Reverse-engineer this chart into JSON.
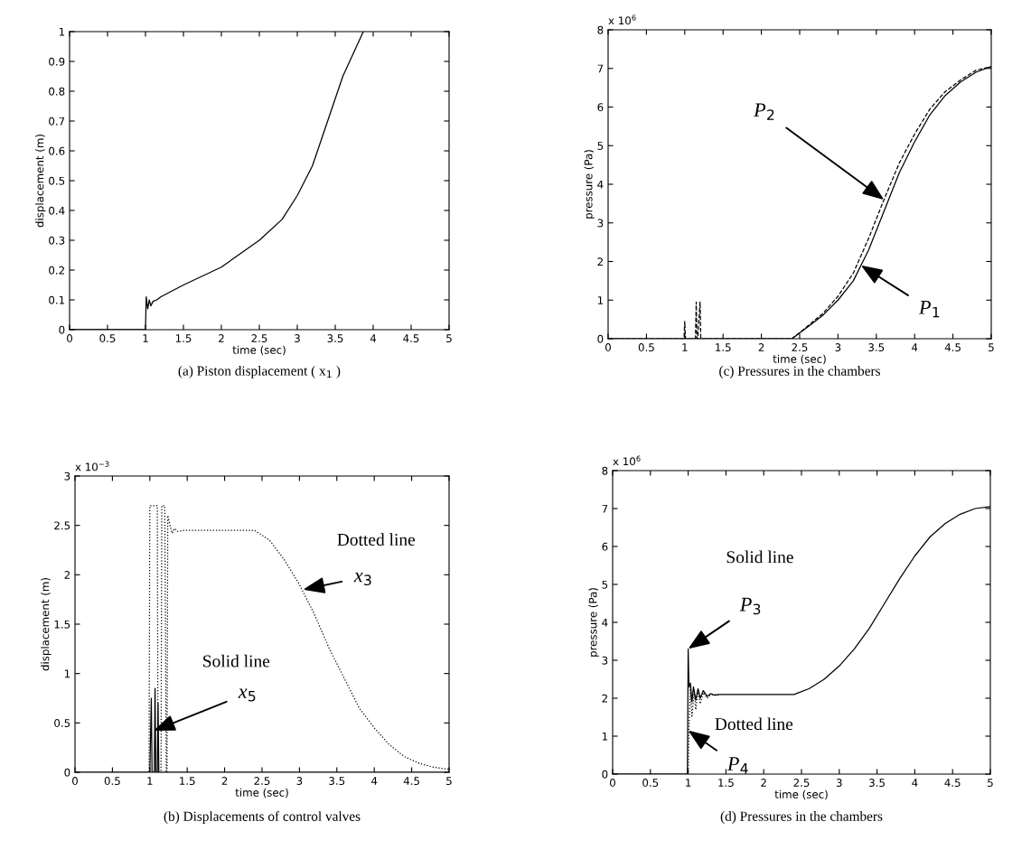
{
  "chart_data": [
    {
      "type": "line",
      "title": "(a) Piston displacement ( x$_{1}$ )",
      "xlabel": "time (sec)",
      "ylabel": "displacement (m)",
      "xlim": [
        0,
        5
      ],
      "ylim": [
        0,
        1
      ],
      "xticks": [
        0,
        0.5,
        1,
        1.5,
        2,
        2.5,
        3,
        3.5,
        4,
        4.5,
        5
      ],
      "yticks": [
        0,
        0.1,
        0.2,
        0.3,
        0.4,
        0.5,
        0.6,
        0.7,
        0.8,
        0.9,
        1
      ],
      "grid": false,
      "legend": false,
      "series": [
        {
          "color": "#000000",
          "line_style": "solid",
          "x": [
            0,
            0.98,
            1.0,
            1.01,
            1.03,
            1.05,
            1.07,
            1.1,
            1.15,
            1.2,
            1.5,
            2.0,
            2.5,
            2.8,
            3.0,
            3.2,
            3.4,
            3.6,
            3.87
          ],
          "values": [
            0,
            0,
            0,
            0.11,
            0.07,
            0.1,
            0.08,
            0.095,
            0.1,
            0.11,
            0.15,
            0.21,
            0.3,
            0.37,
            0.45,
            0.55,
            0.7,
            0.85,
            1.0
          ]
        }
      ]
    },
    {
      "type": "line",
      "title": "(c) Pressures in the chambers",
      "xlabel": "time (sec)",
      "ylabel": "pressure (Pa)",
      "xlim": [
        0,
        5
      ],
      "ylim": [
        0,
        8
      ],
      "xticks": [
        0,
        0.5,
        1,
        1.5,
        2,
        2.5,
        3,
        3.5,
        4,
        4.5,
        5
      ],
      "yticks": [
        0,
        1,
        2,
        3,
        4,
        5,
        6,
        7,
        8
      ],
      "grid": false,
      "legend": false,
      "annotations": [
        "x 10$^{6}$",
        {
          "text": "P$_{2}$",
          "x": 3.6,
          "y": 3.6
        },
        {
          "text": "P$_{1}$",
          "x": 3.3,
          "y": 1.9
        }
      ],
      "series": [
        {
          "color": "#000000",
          "line_style": "solid",
          "x": [
            0,
            2.4,
            2.6,
            2.8,
            3.0,
            3.2,
            3.4,
            3.6,
            3.8,
            4.0,
            4.2,
            4.4,
            4.6,
            4.8,
            5.0
          ],
          "values": [
            0,
            0,
            0.3,
            0.6,
            1.0,
            1.5,
            2.3,
            3.3,
            4.3,
            5.1,
            5.8,
            6.3,
            6.65,
            6.9,
            7.05
          ]
        },
        {
          "color": "#000000",
          "line_style": "dashed",
          "x": [
            0,
            0.99,
            1.0,
            1.01,
            1.14,
            1.15,
            1.16,
            1.17,
            1.2,
            1.21,
            1.22,
            2.4,
            2.6,
            2.8,
            3.0,
            3.2,
            3.4,
            3.6,
            3.8,
            4.0,
            4.2,
            4.4,
            4.6,
            4.8,
            5.0
          ],
          "values": [
            0,
            0,
            0.45,
            0,
            0,
            0.95,
            0,
            0,
            0.95,
            0,
            0,
            0,
            0.32,
            0.65,
            1.1,
            1.7,
            2.6,
            3.6,
            4.55,
            5.3,
            5.95,
            6.4,
            6.7,
            6.95,
            7.05
          ]
        }
      ]
    },
    {
      "type": "line",
      "title": "(b) Displacements of control valves",
      "xlabel": "time (sec)",
      "ylabel": "displacement (m)",
      "xlim": [
        0,
        5
      ],
      "ylim": [
        0,
        3
      ],
      "xticks": [
        0,
        0.5,
        1,
        1.5,
        2,
        2.5,
        3,
        3.5,
        4,
        4.5,
        5
      ],
      "yticks": [
        0,
        0.5,
        1,
        1.5,
        2,
        2.5,
        3
      ],
      "grid": false,
      "legend": false,
      "annotations": [
        "x 10$^{−3}$",
        "Dotted line",
        "Solid line",
        {
          "text": "x$_{3}$",
          "x": 3.05,
          "y": 1.85
        },
        {
          "text": "x$_{5}$",
          "x": 1.05,
          "y": 0.42
        }
      ],
      "series": [
        {
          "color": "#000000",
          "line_style": "dotted",
          "x": [
            0,
            0.99,
            1.0,
            1.1,
            1.11,
            1.15,
            1.16,
            1.2,
            1.22,
            1.23,
            1.24,
            1.27,
            1.3,
            1.33,
            1.37,
            1.45,
            2.4,
            2.6,
            2.8,
            3.0,
            3.2,
            3.4,
            3.6,
            3.8,
            4.0,
            4.2,
            4.4,
            4.6,
            4.8,
            5.0
          ],
          "values": [
            0,
            0,
            2.7,
            2.7,
            0,
            0,
            2.7,
            2.7,
            0,
            0,
            2.6,
            2.5,
            2.42,
            2.47,
            2.44,
            2.45,
            2.45,
            2.35,
            2.15,
            1.9,
            1.6,
            1.25,
            0.95,
            0.65,
            0.45,
            0.28,
            0.16,
            0.09,
            0.05,
            0.03
          ]
        },
        {
          "color": "#000000",
          "line_style": "solid",
          "x": [
            0,
            1.0,
            1.02,
            1.03,
            1.06,
            1.07,
            1.08,
            1.1,
            1.11,
            1.12,
            5.0
          ],
          "values": [
            0,
            0,
            0.75,
            0,
            0,
            0.85,
            0,
            0,
            0.7,
            0,
            0
          ]
        }
      ]
    },
    {
      "type": "line",
      "title": "(d) Pressures in the chambers",
      "xlabel": "time (sec)",
      "ylabel": "pressure (Pa)",
      "xlim": [
        0,
        5
      ],
      "ylim": [
        0,
        8
      ],
      "xticks": [
        0,
        0.5,
        1,
        1.5,
        2,
        2.5,
        3,
        3.5,
        4,
        4.5,
        5
      ],
      "yticks": [
        0,
        1,
        2,
        3,
        4,
        5,
        6,
        7,
        8
      ],
      "grid": false,
      "legend": false,
      "annotations": [
        "x 10$^{6}$",
        "Solid line",
        "Dotted line",
        {
          "text": "P$_{3}$",
          "x": 1.0,
          "y": 3.3
        },
        {
          "text": "P$_{4}$",
          "x": 1.0,
          "y": 1.15
        }
      ],
      "series": [
        {
          "color": "#000000",
          "line_style": "solid",
          "x": [
            0,
            0.99,
            1.0,
            1.01,
            1.03,
            1.05,
            1.07,
            1.1,
            1.13,
            1.16,
            1.2,
            1.25,
            1.3,
            1.35,
            1.4,
            2.4,
            2.6,
            2.8,
            3.0,
            3.2,
            3.4,
            3.6,
            3.8,
            4.0,
            4.2,
            4.4,
            4.6,
            4.8,
            5.0
          ],
          "values": [
            0,
            0,
            3.3,
            2.3,
            2.4,
            1.9,
            2.3,
            1.95,
            2.25,
            2.0,
            2.2,
            2.05,
            2.12,
            2.08,
            2.1,
            2.1,
            2.25,
            2.5,
            2.85,
            3.3,
            3.85,
            4.5,
            5.15,
            5.75,
            6.25,
            6.6,
            6.85,
            7.0,
            7.05
          ]
        },
        {
          "color": "#000000",
          "line_style": "dotted",
          "x": [
            0,
            1.0,
            1.01,
            1.03,
            1.05,
            1.08,
            1.1,
            1.13,
            1.16,
            1.2,
            1.25,
            1.3,
            1.4
          ],
          "values": [
            0,
            0,
            1.15,
            2.3,
            1.5,
            2.2,
            1.7,
            2.2,
            1.85,
            2.15,
            2.0,
            2.1,
            2.08
          ]
        }
      ]
    }
  ]
}
